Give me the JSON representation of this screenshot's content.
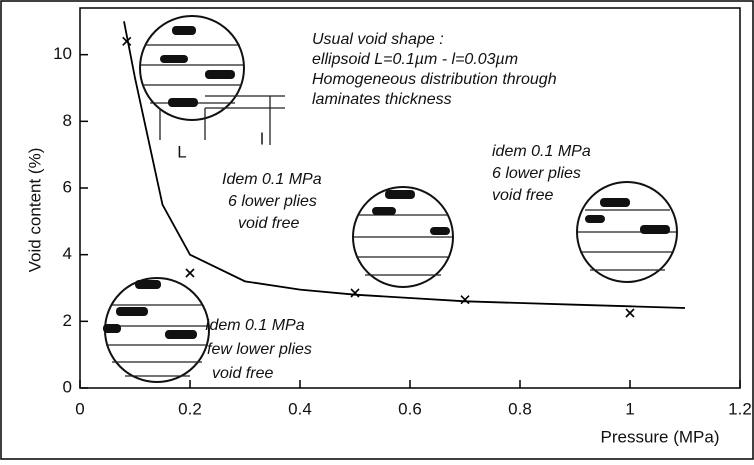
{
  "chart_data": {
    "type": "line",
    "x_label": "Pressure (MPa)",
    "y_label": "Void content (%)",
    "xlim": [
      0,
      1.2
    ],
    "ylim": [
      0,
      11.4
    ],
    "xticks": [
      0,
      0.2,
      0.4,
      0.6,
      0.8,
      1,
      1.2
    ],
    "yticks": [
      0,
      2,
      4,
      6,
      8,
      10
    ],
    "series": [
      {
        "color": "#000000",
        "marker": "x",
        "x": [
          0.085,
          0.2,
          0.5,
          0.7,
          1.0
        ],
        "values": [
          10.4,
          3.45,
          2.85,
          2.65,
          2.25
        ]
      },
      {
        "color": "#000000",
        "marker": "none",
        "x": [
          0.08,
          0.1,
          0.15,
          0.2,
          0.3,
          0.4,
          0.5,
          0.6,
          0.7,
          0.8,
          0.9,
          1.0,
          1.1
        ],
        "values": [
          11,
          9.3,
          5.5,
          4,
          3.2,
          2.95,
          2.8,
          2.7,
          2.6,
          2.55,
          2.5,
          2.45,
          2.4
        ]
      }
    ],
    "annotations": [
      "Usual void shape :",
      "ellipsoid L=0.1µm - l=0.03µm",
      "Homogeneous distribution through",
      "laminates thickness",
      "Idem 0.1 MPa",
      "6 lower plies",
      "void free",
      "idem 0.1 MPa",
      "6 lower plies",
      "void free",
      "Idem 0.1 MPa",
      "few lower plies",
      "void free",
      "L",
      "l"
    ]
  }
}
